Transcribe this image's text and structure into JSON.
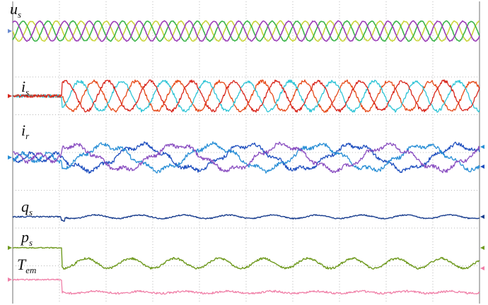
{
  "chart_data": {
    "type": "line",
    "title": "",
    "xlabel": "",
    "ylabel": "",
    "grid": true,
    "x_divisions": 10,
    "y_divisions": 8,
    "traces": [
      {
        "id": "us",
        "label_main": "u",
        "label_sub": "s",
        "pre_transient": "steady",
        "phases": [
          {
            "color": "#c9d43a",
            "phase_deg": 0
          },
          {
            "color": "#3cb54a",
            "phase_deg": 120
          },
          {
            "color": "#9b3db7",
            "phase_deg": 240
          }
        ]
      },
      {
        "id": "is",
        "label_main": "i",
        "label_sub": "s",
        "pre_transient": "zero",
        "phases": [
          {
            "color": "#e64a19",
            "phase_deg": 0
          },
          {
            "color": "#2ec4d6",
            "phase_deg": 120
          },
          {
            "color": "#d8261c",
            "phase_deg": 240
          }
        ]
      },
      {
        "id": "ir",
        "label_main": "i",
        "label_sub": "r",
        "pre_transient": "small",
        "phases": [
          {
            "color": "#1f4fbf",
            "phase_deg": 0
          },
          {
            "color": "#2a8fd6",
            "phase_deg": 120
          },
          {
            "color": "#8a4fc1",
            "phase_deg": 240
          }
        ]
      },
      {
        "id": "qs",
        "label_main": "q",
        "label_sub": "s",
        "pre_transient": "flat",
        "color": "#1b3f8f"
      },
      {
        "id": "ps",
        "label_main": "p",
        "label_sub": "s",
        "pre_transient": "high",
        "color": "#6f9a1f"
      },
      {
        "id": "Tem",
        "label_main": "T",
        "label_sub": "em",
        "pre_transient": "high",
        "color": "#f080a8"
      }
    ]
  }
}
